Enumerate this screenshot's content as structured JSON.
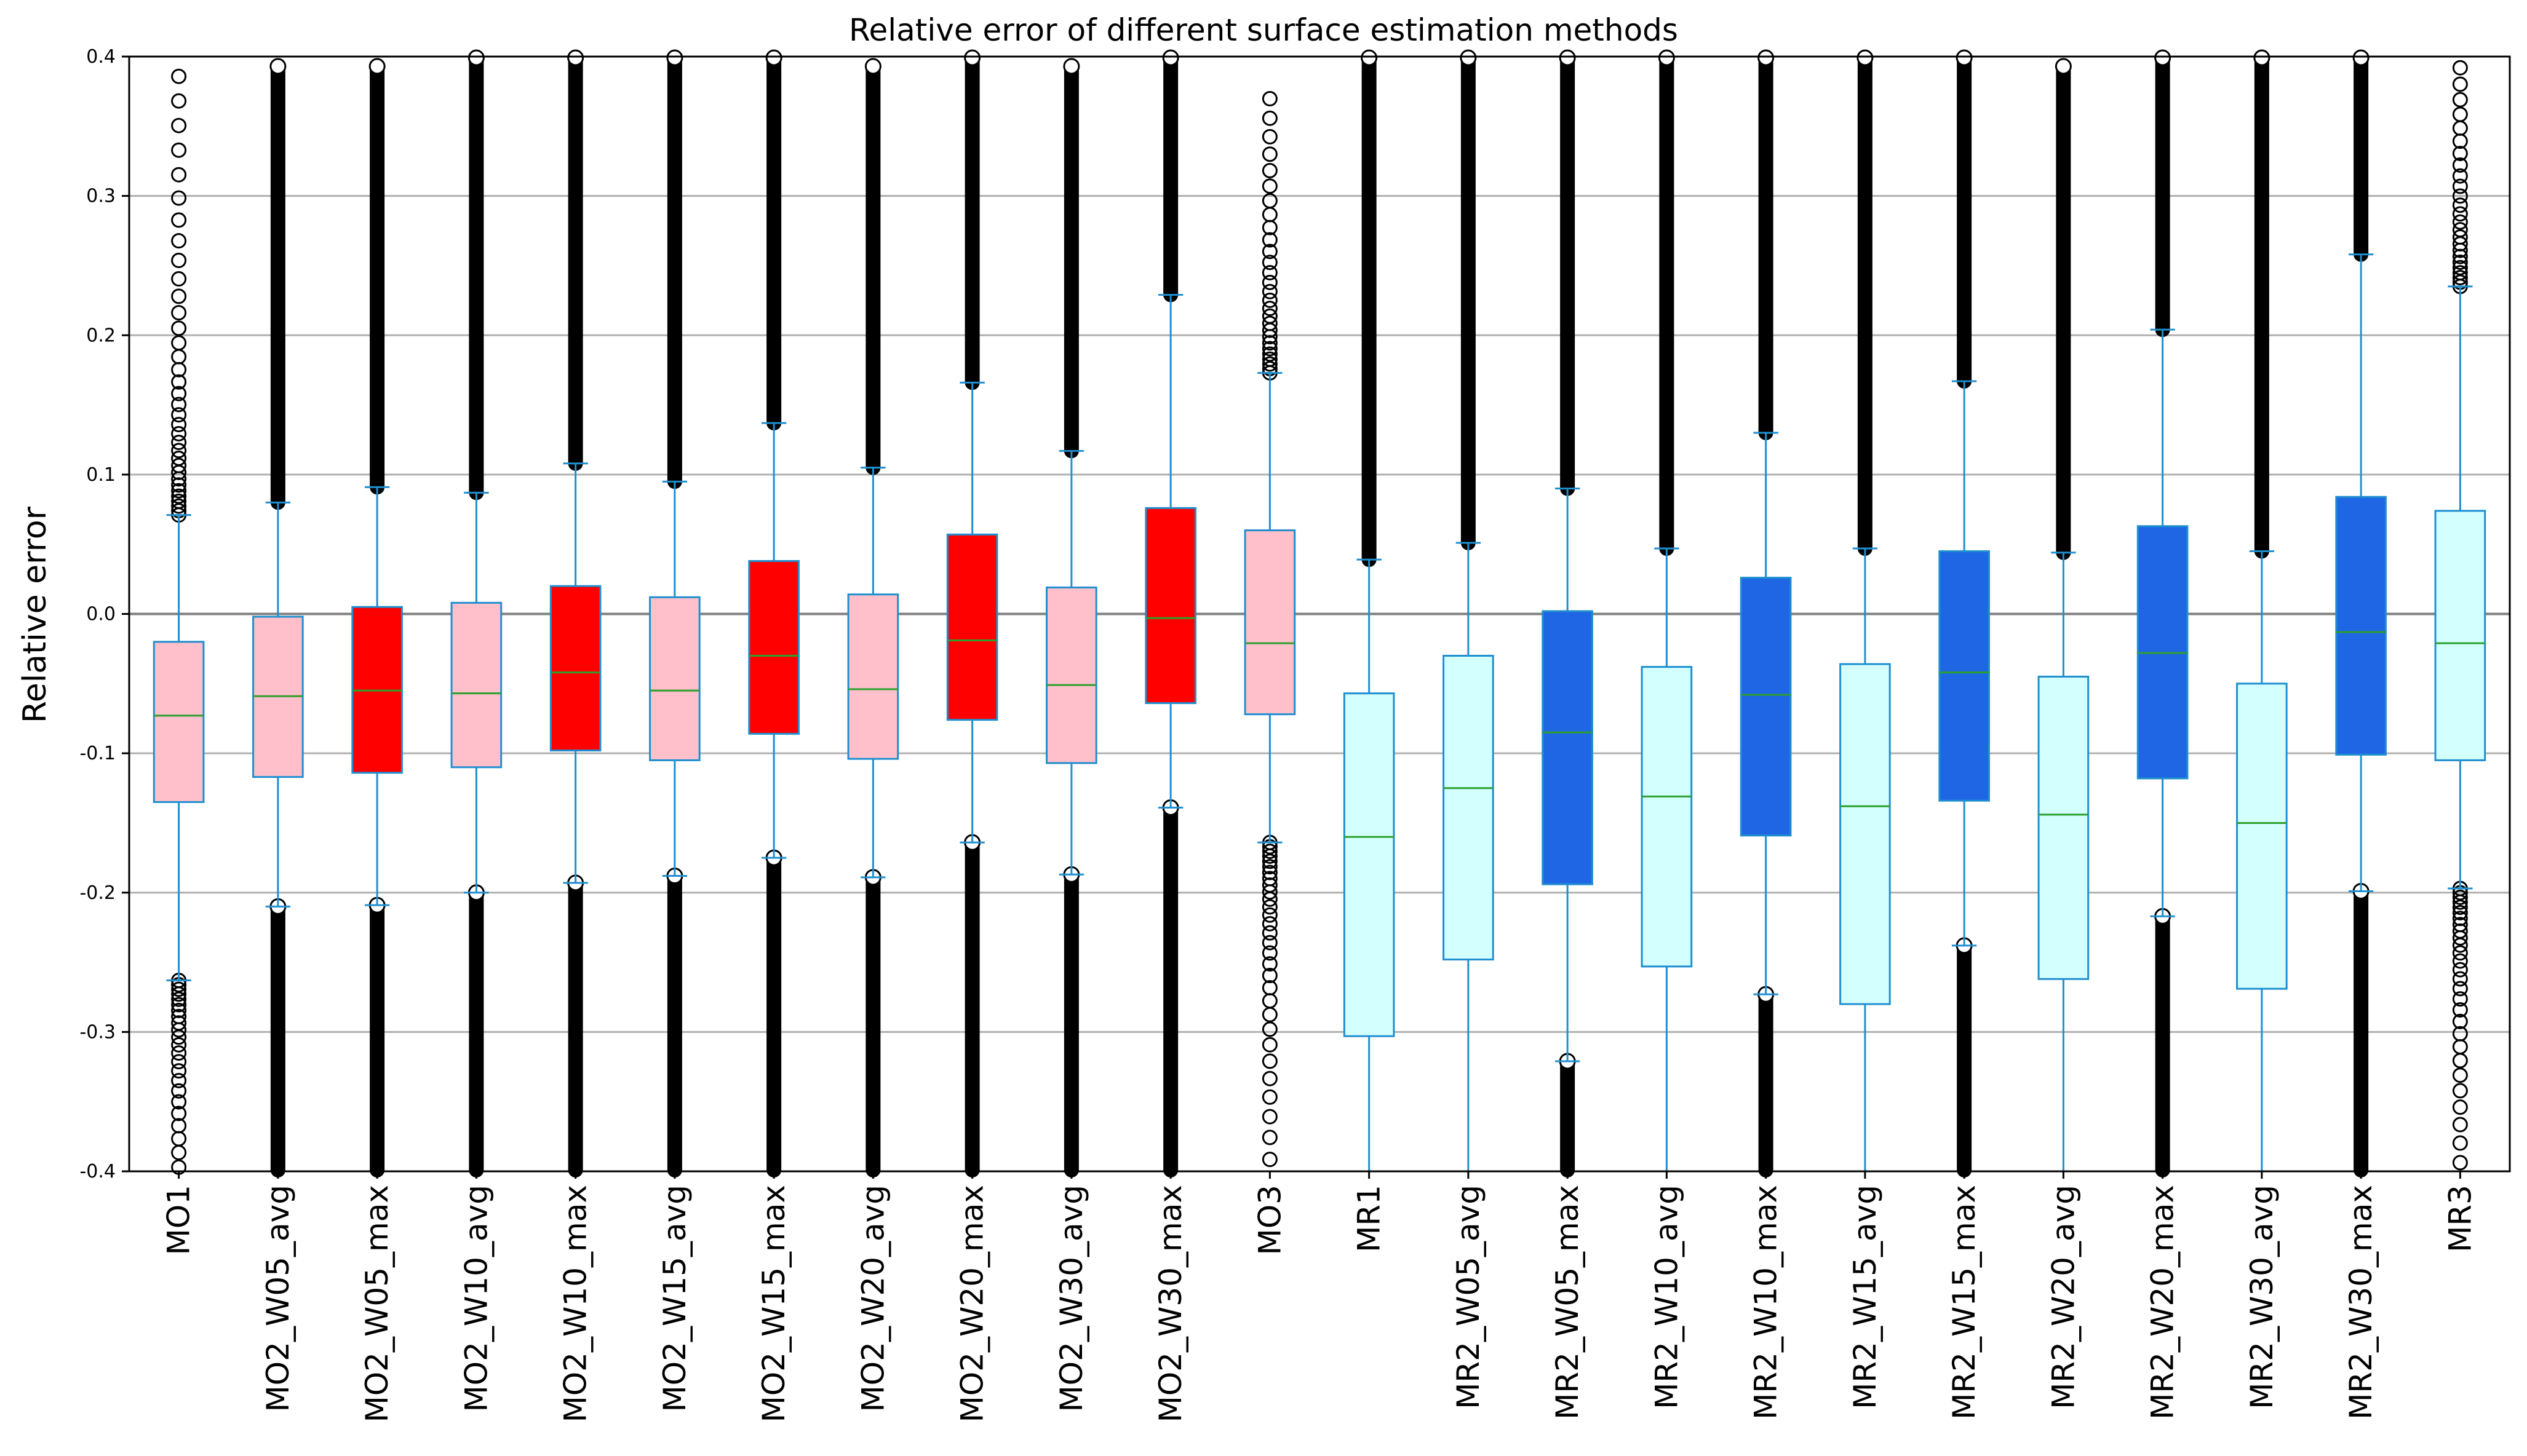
{
  "chart_data": {
    "type": "box",
    "title": "Relative error of different surface estimation methods",
    "xlabel": "",
    "ylabel": "Relative error",
    "ylim": [
      -0.4,
      0.4
    ],
    "yticks": [
      -0.4,
      -0.3,
      -0.2,
      -0.1,
      0.0,
      0.1,
      0.2,
      0.3,
      0.4
    ],
    "ytick_labels": [
      "-0.4",
      "-0.3",
      "-0.2",
      "-0.1",
      "0.0",
      "0.1",
      "0.2",
      "0.3",
      "0.4"
    ],
    "grid": "horizontal",
    "zero_line": true,
    "colors": {
      "pink": "#FFC0CB",
      "red": "#FF0000",
      "lightcyan": "#D4FFFF",
      "blue": "#1F66E5",
      "edge": "#1F8FD0",
      "median": "#2CA02C",
      "grid": "#B0B0B0",
      "outlier": "#000000"
    },
    "boxes": [
      {
        "label": "MO1",
        "q1": -0.135,
        "median": -0.073,
        "q3": -0.02,
        "whisker_low": -0.263,
        "whisker_high": 0.071,
        "fill": "pink",
        "outlier_low_max": -0.263,
        "outlier_low_min": -0.4,
        "outlier_high_min": 0.071,
        "outlier_high_max": 0.392,
        "outlier_density": "medium"
      },
      {
        "label": "MO2_W05_avg",
        "q1": -0.117,
        "median": -0.059,
        "q3": -0.002,
        "whisker_low": -0.21,
        "whisker_high": 0.08,
        "fill": "pink",
        "outlier_low_max": -0.21,
        "outlier_low_min": -0.4,
        "outlier_high_min": 0.08,
        "outlier_high_max": 0.393,
        "outlier_density": "dense"
      },
      {
        "label": "MO2_W05_max",
        "q1": -0.114,
        "median": -0.055,
        "q3": 0.005,
        "whisker_low": -0.209,
        "whisker_high": 0.091,
        "fill": "red",
        "outlier_low_max": -0.209,
        "outlier_low_min": -0.4,
        "outlier_high_min": 0.091,
        "outlier_high_max": 0.393,
        "outlier_density": "dense"
      },
      {
        "label": "MO2_W10_avg",
        "q1": -0.11,
        "median": -0.057,
        "q3": 0.008,
        "whisker_low": -0.2,
        "whisker_high": 0.087,
        "fill": "pink",
        "outlier_low_max": -0.2,
        "outlier_low_min": -0.4,
        "outlier_high_min": 0.087,
        "outlier_high_max": 0.4,
        "outlier_density": "dense"
      },
      {
        "label": "MO2_W10_max",
        "q1": -0.098,
        "median": -0.042,
        "q3": 0.02,
        "whisker_low": -0.193,
        "whisker_high": 0.108,
        "fill": "red",
        "outlier_low_max": -0.193,
        "outlier_low_min": -0.4,
        "outlier_high_min": 0.108,
        "outlier_high_max": 0.4,
        "outlier_density": "dense"
      },
      {
        "label": "MO2_W15_avg",
        "q1": -0.105,
        "median": -0.055,
        "q3": 0.012,
        "whisker_low": -0.188,
        "whisker_high": 0.095,
        "fill": "pink",
        "outlier_low_max": -0.188,
        "outlier_low_min": -0.4,
        "outlier_high_min": 0.095,
        "outlier_high_max": 0.4,
        "outlier_density": "dense"
      },
      {
        "label": "MO2_W15_max",
        "q1": -0.086,
        "median": -0.03,
        "q3": 0.038,
        "whisker_low": -0.175,
        "whisker_high": 0.137,
        "fill": "red",
        "outlier_low_max": -0.175,
        "outlier_low_min": -0.4,
        "outlier_high_min": 0.137,
        "outlier_high_max": 0.4,
        "outlier_density": "dense"
      },
      {
        "label": "MO2_W20_avg",
        "q1": -0.104,
        "median": -0.054,
        "q3": 0.014,
        "whisker_low": -0.189,
        "whisker_high": 0.105,
        "fill": "pink",
        "outlier_low_max": -0.189,
        "outlier_low_min": -0.4,
        "outlier_high_min": 0.105,
        "outlier_high_max": 0.393,
        "outlier_density": "dense"
      },
      {
        "label": "MO2_W20_max",
        "q1": -0.076,
        "median": -0.019,
        "q3": 0.057,
        "whisker_low": -0.164,
        "whisker_high": 0.166,
        "fill": "red",
        "outlier_low_max": -0.164,
        "outlier_low_min": -0.4,
        "outlier_high_min": 0.166,
        "outlier_high_max": 0.4,
        "outlier_density": "dense"
      },
      {
        "label": "MO2_W30_avg",
        "q1": -0.107,
        "median": -0.051,
        "q3": 0.019,
        "whisker_low": -0.187,
        "whisker_high": 0.117,
        "fill": "pink",
        "outlier_low_max": -0.187,
        "outlier_low_min": -0.4,
        "outlier_high_min": 0.117,
        "outlier_high_max": 0.393,
        "outlier_density": "dense"
      },
      {
        "label": "MO2_W30_max",
        "q1": -0.064,
        "median": -0.003,
        "q3": 0.076,
        "whisker_low": -0.139,
        "whisker_high": 0.229,
        "fill": "red",
        "outlier_low_max": -0.139,
        "outlier_low_min": -0.4,
        "outlier_high_min": 0.229,
        "outlier_high_max": 0.4,
        "outlier_density": "dense"
      },
      {
        "label": "MO3",
        "q1": -0.072,
        "median": -0.021,
        "q3": 0.06,
        "whisker_low": -0.164,
        "whisker_high": 0.173,
        "fill": "pink",
        "outlier_low_max": -0.164,
        "outlier_low_min": -0.394,
        "outlier_high_min": 0.173,
        "outlier_high_max": 0.372,
        "outlier_density": "medium"
      },
      {
        "label": "MR1",
        "q1": -0.303,
        "median": -0.16,
        "q3": -0.057,
        "whisker_low": -0.4,
        "whisker_high": 0.039,
        "fill": "lightcyan",
        "outlier_low_max": null,
        "outlier_low_min": null,
        "outlier_high_min": 0.039,
        "outlier_high_max": 0.4,
        "outlier_density": "dense"
      },
      {
        "label": "MR2_W05_avg",
        "q1": -0.248,
        "median": -0.125,
        "q3": -0.03,
        "whisker_low": -0.4,
        "whisker_high": 0.051,
        "fill": "lightcyan",
        "outlier_low_max": null,
        "outlier_low_min": null,
        "outlier_high_min": 0.051,
        "outlier_high_max": 0.4,
        "outlier_density": "dense"
      },
      {
        "label": "MR2_W05_max",
        "q1": -0.194,
        "median": -0.085,
        "q3": 0.002,
        "whisker_low": -0.321,
        "whisker_high": 0.09,
        "fill": "blue",
        "outlier_low_max": -0.321,
        "outlier_low_min": -0.4,
        "outlier_high_min": 0.09,
        "outlier_high_max": 0.4,
        "outlier_density": "dense"
      },
      {
        "label": "MR2_W10_avg",
        "q1": -0.253,
        "median": -0.131,
        "q3": -0.038,
        "whisker_low": -0.4,
        "whisker_high": 0.047,
        "fill": "lightcyan",
        "outlier_low_max": null,
        "outlier_low_min": null,
        "outlier_high_min": 0.047,
        "outlier_high_max": 0.4,
        "outlier_density": "dense"
      },
      {
        "label": "MR2_W10_max",
        "q1": -0.159,
        "median": -0.058,
        "q3": 0.026,
        "whisker_low": -0.273,
        "whisker_high": 0.13,
        "fill": "blue",
        "outlier_low_max": -0.273,
        "outlier_low_min": -0.4,
        "outlier_high_min": 0.13,
        "outlier_high_max": 0.4,
        "outlier_density": "dense"
      },
      {
        "label": "MR2_W15_avg",
        "q1": -0.28,
        "median": -0.138,
        "q3": -0.036,
        "whisker_low": -0.4,
        "whisker_high": 0.047,
        "fill": "lightcyan",
        "outlier_low_max": null,
        "outlier_low_min": null,
        "outlier_high_min": 0.047,
        "outlier_high_max": 0.4,
        "outlier_density": "dense"
      },
      {
        "label": "MR2_W15_max",
        "q1": -0.134,
        "median": -0.042,
        "q3": 0.045,
        "whisker_low": -0.238,
        "whisker_high": 0.167,
        "fill": "blue",
        "outlier_low_max": -0.238,
        "outlier_low_min": -0.4,
        "outlier_high_min": 0.167,
        "outlier_high_max": 0.4,
        "outlier_density": "dense"
      },
      {
        "label": "MR2_W20_avg",
        "q1": -0.262,
        "median": -0.144,
        "q3": -0.045,
        "whisker_low": -0.4,
        "whisker_high": 0.044,
        "fill": "lightcyan",
        "outlier_low_max": null,
        "outlier_low_min": null,
        "outlier_high_min": 0.044,
        "outlier_high_max": 0.393,
        "outlier_density": "dense"
      },
      {
        "label": "MR2_W20_max",
        "q1": -0.118,
        "median": -0.028,
        "q3": 0.063,
        "whisker_low": -0.217,
        "whisker_high": 0.204,
        "fill": "blue",
        "outlier_low_max": -0.217,
        "outlier_low_min": -0.4,
        "outlier_high_min": 0.204,
        "outlier_high_max": 0.4,
        "outlier_density": "dense"
      },
      {
        "label": "MR2_W30_avg",
        "q1": -0.269,
        "median": -0.15,
        "q3": -0.05,
        "whisker_low": -0.4,
        "whisker_high": 0.045,
        "fill": "lightcyan",
        "outlier_low_max": null,
        "outlier_low_min": null,
        "outlier_high_min": 0.045,
        "outlier_high_max": 0.4,
        "outlier_density": "dense"
      },
      {
        "label": "MR2_W30_max",
        "q1": -0.101,
        "median": -0.013,
        "q3": 0.084,
        "whisker_low": -0.199,
        "whisker_high": 0.258,
        "fill": "blue",
        "outlier_low_max": -0.199,
        "outlier_low_min": -0.4,
        "outlier_high_min": 0.258,
        "outlier_high_max": 0.4,
        "outlier_density": "dense"
      },
      {
        "label": "MR3",
        "q1": -0.105,
        "median": -0.021,
        "q3": 0.074,
        "whisker_low": -0.197,
        "whisker_high": 0.235,
        "fill": "lightcyan",
        "outlier_low_max": -0.197,
        "outlier_low_min": -0.4,
        "outlier_high_min": 0.235,
        "outlier_high_max": 0.4,
        "outlier_density": "medium"
      }
    ]
  }
}
